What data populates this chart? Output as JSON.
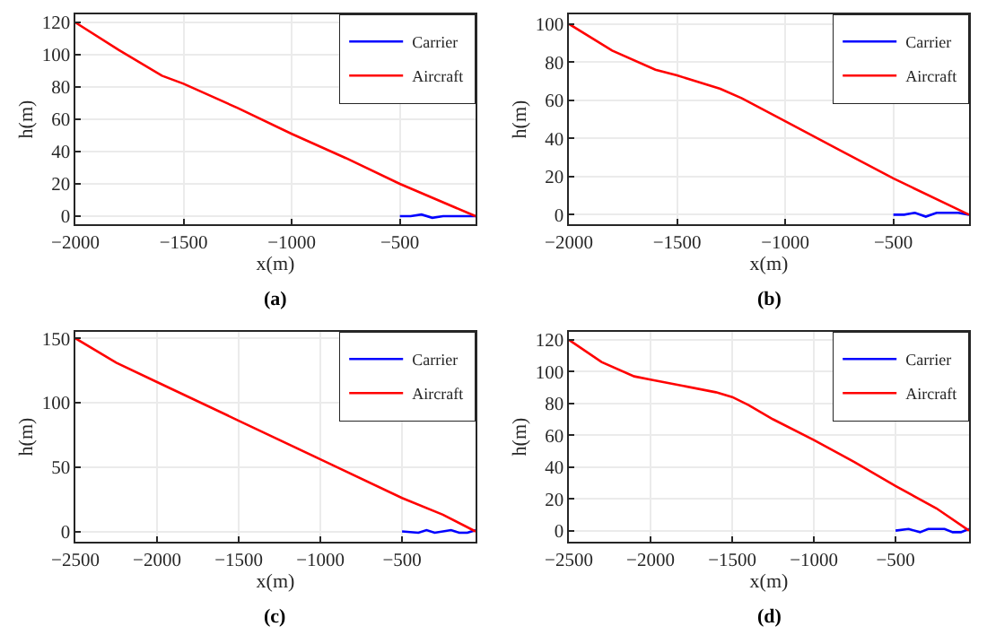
{
  "chart_data": [
    {
      "type": "line",
      "xlabel": "x(m)",
      "ylabel": "h(m)",
      "annotations": [
        "(a)"
      ],
      "xlim": [
        -2000,
        -150
      ],
      "xticks": [
        -2000,
        -1500,
        -1000,
        -500
      ],
      "ylim": [
        -5,
        125
      ],
      "yticks": [
        0,
        20,
        40,
        60,
        80,
        100,
        120
      ],
      "grid": true,
      "legend": "top right",
      "series": [
        {
          "name": "Carrier",
          "color": "#0000ff",
          "x": [
            -500,
            -450,
            -400,
            -350,
            -300,
            -250,
            -200,
            -150
          ],
          "values": [
            0,
            0,
            1,
            -1,
            0,
            0,
            0,
            0
          ]
        },
        {
          "name": "Aircraft",
          "color": "#ff0000",
          "x": [
            -2000,
            -1800,
            -1600,
            -1500,
            -1250,
            -1000,
            -750,
            -500,
            -150
          ],
          "values": [
            120,
            103,
            87,
            82,
            67,
            51,
            36,
            20,
            0
          ]
        }
      ]
    },
    {
      "type": "line",
      "xlabel": "x(m)",
      "ylabel": "h(m)",
      "annotations": [
        "(b)"
      ],
      "xlim": [
        -2000,
        -150
      ],
      "xticks": [
        -2000,
        -1500,
        -1000,
        -500
      ],
      "ylim": [
        -5,
        105
      ],
      "yticks": [
        0,
        20,
        40,
        60,
        80,
        100
      ],
      "grid": true,
      "legend": "top right",
      "series": [
        {
          "name": "Carrier",
          "color": "#0000ff",
          "x": [
            -500,
            -450,
            -400,
            -350,
            -300,
            -250,
            -200,
            -150
          ],
          "values": [
            0,
            0,
            1,
            -1,
            1,
            1,
            1,
            0
          ]
        },
        {
          "name": "Aircraft",
          "color": "#ff0000",
          "x": [
            -2000,
            -1800,
            -1600,
            -1500,
            -1300,
            -1200,
            -1000,
            -750,
            -500,
            -150
          ],
          "values": [
            100,
            86,
            76,
            73,
            66,
            61,
            49,
            34,
            19,
            0
          ]
        }
      ]
    },
    {
      "type": "line",
      "xlabel": "x(m)",
      "ylabel": "h(m)",
      "annotations": [
        "(c)"
      ],
      "xlim": [
        -2500,
        -50
      ],
      "xticks": [
        -2500,
        -2000,
        -1500,
        -1000,
        -500
      ],
      "ylim": [
        -8,
        155
      ],
      "yticks": [
        0,
        50,
        100,
        150
      ],
      "grid": true,
      "legend": "top right",
      "series": [
        {
          "name": "Carrier",
          "color": "#0000ff",
          "x": [
            -500,
            -400,
            -350,
            -300,
            -200,
            -150,
            -100,
            -50
          ],
          "values": [
            0,
            -1,
            1,
            -1,
            1,
            -1,
            -1,
            1
          ]
        },
        {
          "name": "Aircraft",
          "color": "#ff0000",
          "x": [
            -2500,
            -2250,
            -2000,
            -1500,
            -1000,
            -500,
            -250,
            -50
          ],
          "values": [
            150,
            131,
            116,
            86,
            56,
            26,
            13,
            0
          ]
        }
      ]
    },
    {
      "type": "line",
      "xlabel": "x(m)",
      "ylabel": "h(m)",
      "annotations": [
        "(d)"
      ],
      "xlim": [
        -2500,
        -50
      ],
      "xticks": [
        -2500,
        -2000,
        -1500,
        -1000,
        -500
      ],
      "ylim": [
        -7,
        125
      ],
      "yticks": [
        0,
        20,
        40,
        60,
        80,
        100,
        120
      ],
      "grid": true,
      "legend": "top right",
      "series": [
        {
          "name": "Carrier",
          "color": "#0000ff",
          "x": [
            -500,
            -420,
            -350,
            -300,
            -200,
            -150,
            -100,
            -50
          ],
          "values": [
            0,
            1,
            -1,
            1,
            1,
            -1,
            -1,
            1
          ]
        },
        {
          "name": "Aircraft",
          "color": "#ff0000",
          "x": [
            -2500,
            -2300,
            -2100,
            -2000,
            -1800,
            -1600,
            -1500,
            -1400,
            -1250,
            -1000,
            -750,
            -500,
            -250,
            -50
          ],
          "values": [
            120,
            106,
            97,
            95,
            91,
            87,
            84,
            79,
            70,
            57,
            43,
            28,
            14,
            0
          ]
        }
      ]
    }
  ]
}
